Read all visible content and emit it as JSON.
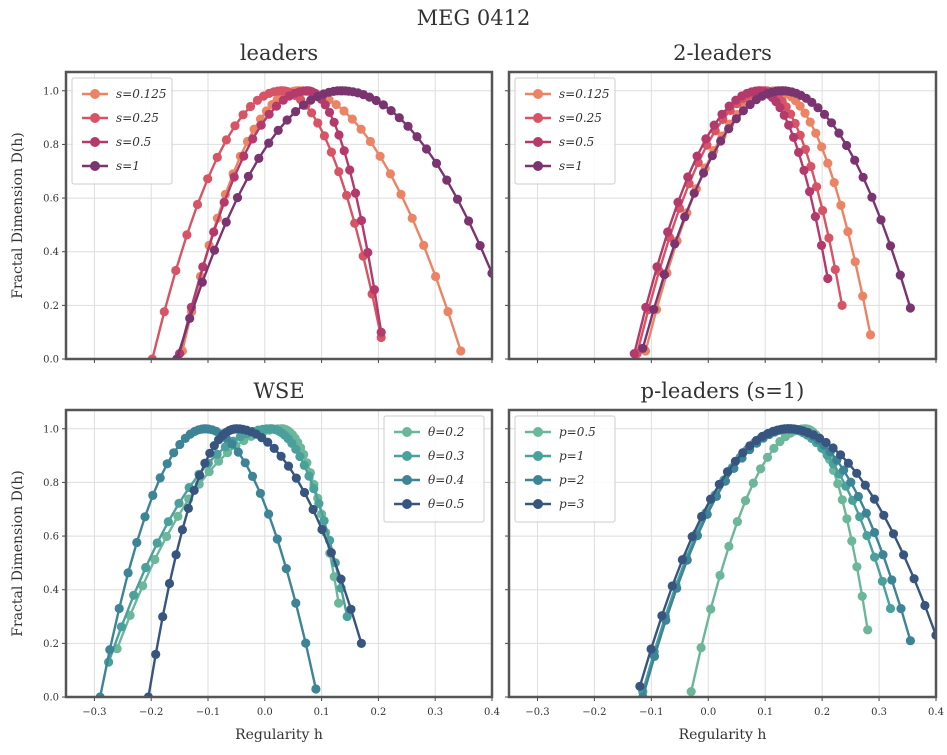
{
  "figure": {
    "title": "MEG 0412"
  },
  "chart_data": [
    {
      "type": "line",
      "title": "leaders",
      "xlabel": "",
      "ylabel": "Fractal Dimension D(h)",
      "xlim": [
        -0.35,
        0.4
      ],
      "ylim": [
        0,
        1.07
      ],
      "xticks": [],
      "yticks": [
        "0.0",
        "0.2",
        "0.4",
        "0.6",
        "0.8",
        "1.0"
      ],
      "grid": true,
      "legend": "top-left",
      "series": [
        {
          "name": "s=0.125",
          "color": "#eb8464",
          "left": -0.145,
          "peak": 0.06,
          "right": 0.345,
          "y_left": 0.03,
          "y_right": 0.03,
          "n": 40
        },
        {
          "name": "s=0.25",
          "color": "#d65465",
          "left": -0.198,
          "peak": 0.03,
          "right": 0.205,
          "y_left": 0.0,
          "y_right": 0.08,
          "n": 34
        },
        {
          "name": "s=0.5",
          "color": "#b43a6b",
          "left": -0.15,
          "peak": 0.075,
          "right": 0.205,
          "y_left": 0.02,
          "y_right": 0.1,
          "n": 34
        },
        {
          "name": "s=1",
          "color": "#7a3470",
          "left": -0.155,
          "peak": 0.135,
          "right": 0.4,
          "y_left": 0.0,
          "y_right": 0.32,
          "n": 40
        }
      ]
    },
    {
      "type": "line",
      "title": "2-leaders",
      "xlabel": "",
      "ylabel": "",
      "xlim": [
        -0.35,
        0.4
      ],
      "ylim": [
        0,
        1.07
      ],
      "xticks": [],
      "yticks": [],
      "grid": true,
      "legend": "top-left",
      "series": [
        {
          "name": "s=0.125",
          "color": "#eb8464",
          "left": -0.11,
          "peak": 0.12,
          "right": 0.285,
          "y_left": 0.03,
          "y_right": 0.09,
          "n": 38
        },
        {
          "name": "s=0.25",
          "color": "#d65465",
          "left": -0.125,
          "peak": 0.1,
          "right": 0.235,
          "y_left": 0.02,
          "y_right": 0.2,
          "n": 36
        },
        {
          "name": "s=0.5",
          "color": "#b43a6b",
          "left": -0.13,
          "peak": 0.09,
          "right": 0.21,
          "y_left": 0.02,
          "y_right": 0.3,
          "n": 34
        },
        {
          "name": "s=1",
          "color": "#7a3470",
          "left": -0.115,
          "peak": 0.13,
          "right": 0.355,
          "y_left": 0.04,
          "y_right": 0.19,
          "n": 40
        }
      ]
    },
    {
      "type": "line",
      "title": "WSE",
      "xlabel": "Regularity h",
      "ylabel": "Fractal Dimension D(h)",
      "xlim": [
        -0.35,
        0.4
      ],
      "ylim": [
        0,
        1.07
      ],
      "xticks": [
        "−0.3",
        "−0.2",
        "−0.1",
        "0.0",
        "0.1",
        "0.2",
        "0.3",
        "0.4"
      ],
      "yticks": [
        "0.0",
        "0.2",
        "0.4",
        "0.6",
        "0.8",
        "1.0"
      ],
      "grid": true,
      "legend": "top-right",
      "series": [
        {
          "name": "θ=0.2",
          "color": "#6cb79a",
          "left": -0.26,
          "peak": 0.03,
          "right": 0.13,
          "y_left": 0.18,
          "y_right": 0.35,
          "n": 40
        },
        {
          "name": "θ=0.3",
          "color": "#4aa09a",
          "left": -0.275,
          "peak": 0.01,
          "right": 0.145,
          "y_left": 0.13,
          "y_right": 0.3,
          "n": 40
        },
        {
          "name": "θ=0.4",
          "color": "#3c8496",
          "left": -0.29,
          "peak": -0.105,
          "right": 0.09,
          "y_left": 0.0,
          "y_right": 0.03,
          "n": 34
        },
        {
          "name": "θ=0.5",
          "color": "#37557f",
          "left": -0.205,
          "peak": -0.05,
          "right": 0.17,
          "y_left": 0.0,
          "y_right": 0.2,
          "n": 38
        }
      ]
    },
    {
      "type": "line",
      "title": "p-leaders (s=1)",
      "xlabel": "Regularity h",
      "ylabel": "",
      "xlim": [
        -0.35,
        0.4
      ],
      "ylim": [
        0,
        1.07
      ],
      "xticks": [
        "−0.3",
        "−0.2",
        "−0.1",
        "0.0",
        "0.1",
        "0.2",
        "0.3",
        "0.4"
      ],
      "yticks": [],
      "grid": true,
      "legend": "top-left",
      "series": [
        {
          "name": "p=0.5",
          "color": "#6cb79a",
          "left": -0.03,
          "peak": 0.17,
          "right": 0.28,
          "y_left": 0.02,
          "y_right": 0.25,
          "n": 36
        },
        {
          "name": "p=1",
          "color": "#4aa09a",
          "left": -0.115,
          "peak": 0.14,
          "right": 0.32,
          "y_left": 0.02,
          "y_right": 0.33,
          "n": 40
        },
        {
          "name": "p=2",
          "color": "#3c8496",
          "left": -0.115,
          "peak": 0.145,
          "right": 0.355,
          "y_left": 0.0,
          "y_right": 0.21,
          "n": 40
        },
        {
          "name": "p=3",
          "color": "#37557f",
          "left": -0.12,
          "peak": 0.14,
          "right": 0.4,
          "y_left": 0.04,
          "y_right": 0.23,
          "n": 42
        }
      ]
    }
  ]
}
